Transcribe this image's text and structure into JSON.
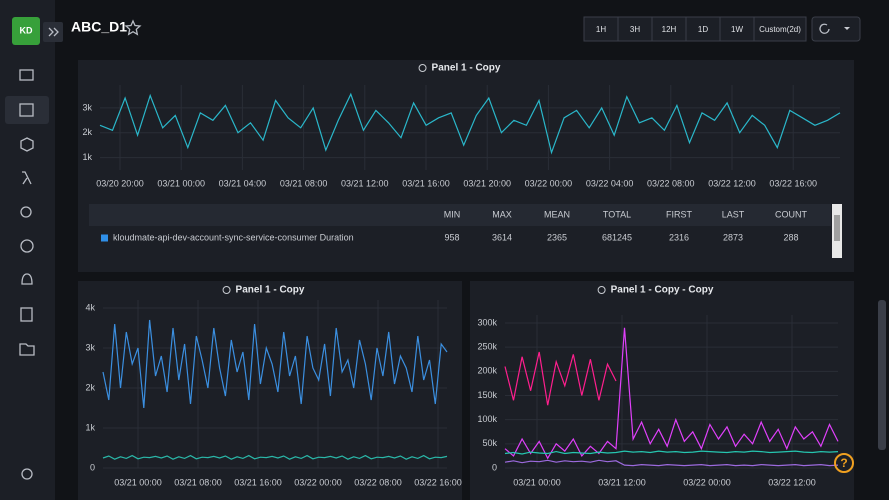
{
  "header": {
    "logo": "KD",
    "title": "ABC_D1"
  },
  "time_buttons": [
    "1H",
    "3H",
    "12H",
    "1D",
    "1W",
    "Custom(2d)"
  ],
  "help": "?",
  "stats_table": {
    "columns": [
      "MIN",
      "MAX",
      "MEAN",
      "TOTAL",
      "FIRST",
      "LAST",
      "COUNT"
    ],
    "rows": [
      {
        "name": "kloudmate-api-dev-account-sync-service-consumer Duration",
        "color": "#2f8fe8",
        "cells": [
          958,
          3614,
          2365,
          681245,
          2316,
          2873,
          288
        ]
      }
    ]
  },
  "chart_data": [
    {
      "type": "line",
      "title": "Panel 1 - Copy",
      "ylim": [
        500,
        3600
      ],
      "yticks": [
        {
          "value": 1000,
          "label": "1k"
        },
        {
          "value": 2000,
          "label": "2k"
        },
        {
          "value": 3000,
          "label": "3k"
        }
      ],
      "xticks": [
        "03/20 20:00",
        "03/21 00:00",
        "03/21 04:00",
        "03/21 08:00",
        "03/21 12:00",
        "03/21 16:00",
        "03/21 20:00",
        "03/22 00:00",
        "03/22 04:00",
        "03/22 08:00",
        "03/22 12:00",
        "03/22 16:00"
      ],
      "grid": true,
      "series": [
        {
          "color": "#2ab7ca",
          "values": [
            2300,
            2100,
            3400,
            1900,
            3500,
            2200,
            2700,
            1400,
            2800,
            2500,
            3100,
            2000,
            2400,
            1700,
            3300,
            2600,
            2200,
            3000,
            1300,
            2500,
            3550,
            2100,
            2900,
            2400,
            1800,
            3200,
            2300,
            2600,
            2800,
            1500,
            2700,
            3400,
            2000,
            2500,
            2300,
            3300,
            1200,
            2600,
            2900,
            2200,
            3000,
            1900,
            3450,
            2400,
            2600,
            2100,
            3100,
            1600,
            2800,
            2500,
            3200,
            2000,
            2700,
            2300,
            1400,
            2900,
            2600,
            2300,
            2500,
            2800
          ]
        }
      ]
    },
    {
      "type": "line",
      "title": "Panel 1 - Copy",
      "ylim": [
        0,
        4000
      ],
      "yticks": [
        0,
        {
          "value": 1000,
          "label": "1k"
        },
        {
          "value": 2000,
          "label": "2k"
        },
        {
          "value": 3000,
          "label": "3k"
        },
        {
          "value": 4000,
          "label": "4k"
        }
      ],
      "xticks": [
        "03/21 00:00",
        "03/21 08:00",
        "03/21 16:00",
        "03/22 00:00",
        "03/22 08:00",
        "03/22 16:00"
      ],
      "grid": true,
      "series": [
        {
          "color": "#3b8fe0",
          "values": [
            2400,
            1700,
            3600,
            2000,
            3400,
            2600,
            3000,
            1500,
            3700,
            2300,
            2800,
            1900,
            3500,
            2200,
            3100,
            1600,
            3300,
            2700,
            2000,
            3500,
            2500,
            1800,
            3200,
            2400,
            2900,
            1700,
            3600,
            2100,
            3000,
            2600,
            1900,
            3400,
            2300,
            2800,
            1600,
            3300,
            2500,
            2200,
            3100,
            1800,
            3500,
            2400,
            2700,
            2000,
            3200,
            2600,
            1700,
            3000,
            2300,
            3400,
            2100,
            2800,
            2500,
            1900,
            3300,
            2200,
            2700,
            1600,
            3100,
            2900
          ]
        },
        {
          "color": "#2ab7a8",
          "values": [
            250,
            300,
            220,
            280,
            240,
            310,
            230,
            270,
            260,
            290,
            250,
            300,
            220,
            280,
            240,
            310,
            230,
            270,
            260,
            290,
            250,
            300,
            220,
            280,
            240,
            310,
            230,
            270,
            260,
            290,
            250,
            300,
            220,
            280,
            240,
            310,
            230,
            270,
            260,
            290,
            250,
            300,
            220,
            280,
            240,
            310,
            230,
            270,
            260,
            290,
            250,
            300,
            220,
            280,
            240,
            310,
            230,
            270,
            260,
            290
          ]
        }
      ]
    },
    {
      "type": "line",
      "title": "Panel 1 - Copy - Copy",
      "ylim": [
        0,
        300000
      ],
      "yticks": [
        0,
        {
          "value": 50000,
          "label": "50k"
        },
        {
          "value": 100000,
          "label": "100k"
        },
        {
          "value": 150000,
          "label": "150k"
        },
        {
          "value": 200000,
          "label": "200k"
        },
        {
          "value": 250000,
          "label": "250k"
        },
        {
          "value": 300000,
          "label": "300k"
        }
      ],
      "xticks": [
        "03/21 00:00",
        "03/21 12:00",
        "03/22 00:00",
        "03/22 12:00"
      ],
      "grid": true,
      "series": [
        {
          "color": "#ff1f8e",
          "values": [
            210000,
            140000,
            230000,
            160000,
            240000,
            130000,
            220000,
            170000,
            235000,
            150000,
            225000,
            140000,
            215000,
            180000,
            null,
            null,
            null,
            null,
            null,
            null,
            null,
            null,
            null,
            null,
            null,
            null,
            null,
            null,
            null,
            null,
            null,
            null,
            null,
            null,
            null,
            null,
            null,
            null,
            null,
            null
          ]
        },
        {
          "color": "#e040fb",
          "values": [
            40000,
            25000,
            60000,
            30000,
            55000,
            20000,
            50000,
            35000,
            60000,
            25000,
            45000,
            30000,
            55000,
            40000,
            290000,
            60000,
            95000,
            50000,
            80000,
            45000,
            100000,
            55000,
            75000,
            40000,
            90000,
            60000,
            85000,
            45000,
            70000,
            50000,
            95000,
            55000,
            80000,
            40000,
            85000,
            60000,
            75000,
            45000,
            90000,
            55000
          ]
        },
        {
          "color": "#26c6b0",
          "values": [
            30000,
            32000,
            29000,
            33000,
            31000,
            30000,
            34000,
            30000,
            32000,
            31000,
            30000,
            33000,
            31000,
            32000,
            35000,
            33000,
            34000,
            32000,
            35000,
            33000,
            34000,
            32000,
            33000,
            35000,
            34000,
            33000,
            32000,
            34000,
            33000,
            35000,
            34000,
            32000,
            33000,
            34000,
            35000,
            33000,
            32000,
            34000,
            33000,
            34000
          ]
        },
        {
          "color": "#9c6ade",
          "values": [
            12000,
            15000,
            11000,
            14000,
            13000,
            16000,
            12000,
            15000,
            13000,
            14000,
            12000,
            16000,
            13000,
            15000,
            6000,
            5000,
            7000,
            6000,
            5000,
            7000,
            6000,
            5000,
            6000,
            7000,
            5000,
            6000,
            7000,
            5000,
            6000,
            5000,
            7000,
            6000,
            5000,
            6000,
            7000,
            5000,
            6000,
            7000,
            5000,
            6000
          ]
        }
      ]
    }
  ]
}
